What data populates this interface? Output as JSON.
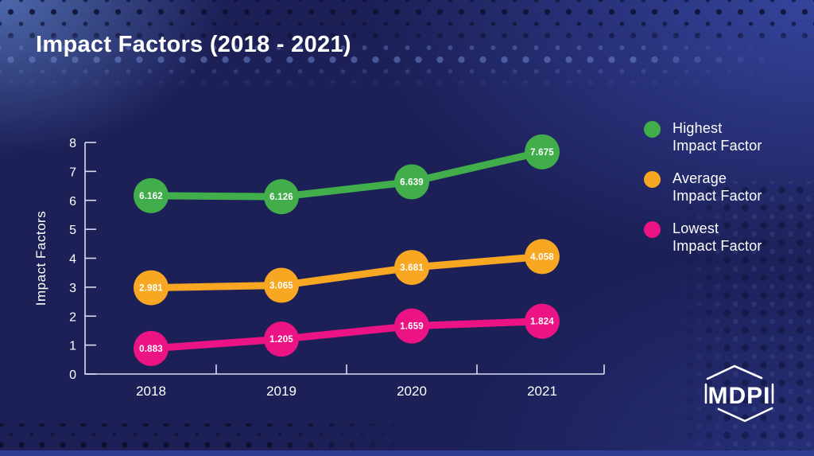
{
  "slide": {
    "title": "Impact Factors (2018 - 2021)"
  },
  "chart_data": {
    "type": "line",
    "title": "Impact Factors (2018 - 2021)",
    "categories": [
      "2018",
      "2019",
      "2020",
      "2021"
    ],
    "series": [
      {
        "name": "Highest Impact Factor",
        "color": "#41ae4b",
        "values": [
          6.162,
          6.126,
          6.639,
          7.675
        ],
        "point_labels": [
          "6.162",
          "6.126",
          "6.639",
          "7.675"
        ]
      },
      {
        "name": "Average Impact Factor",
        "color": "#f7a721",
        "values": [
          2.981,
          3.065,
          3.681,
          4.058
        ],
        "point_labels": [
          "2.981",
          "3.065",
          "3.681",
          "4.058"
        ]
      },
      {
        "name": "Lowest Impact Factor",
        "color": "#ec1484",
        "values": [
          0.883,
          1.205,
          1.659,
          1.824
        ],
        "point_labels": [
          "0.883",
          "1.205",
          "1.659",
          "1.824"
        ]
      }
    ],
    "xlabel": "",
    "ylabel": "Impact  Factors",
    "ylim": [
      0,
      8
    ],
    "yticks": [
      0,
      1,
      2,
      3,
      4,
      5,
      6,
      7,
      8
    ],
    "grid": false,
    "legend_position": "right",
    "point_labels_shown": true
  },
  "legend": {
    "items": [
      {
        "line1": "Highest",
        "line2": "Impact Factor",
        "color": "#41ae4b"
      },
      {
        "line1": "Average",
        "line2": "Impact Factor",
        "color": "#f7a721"
      },
      {
        "line1": "Lowest",
        "line2": "Impact Factor",
        "color": "#ec1484"
      }
    ]
  },
  "logo": {
    "text": "MDPI"
  },
  "colors": {
    "background": "#1c2057",
    "axis": "#d9ddf0",
    "text": "#ffffff",
    "bottom_strip": "#2e3d92"
  }
}
